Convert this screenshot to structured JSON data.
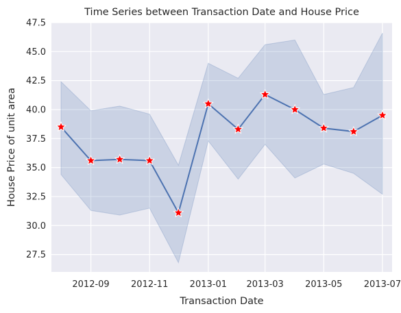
{
  "chart_data": {
    "type": "line",
    "title": "Time Series between Transaction Date and House Price",
    "xlabel": "Transaction Date",
    "ylabel": "House Price of unit area",
    "x": [
      "2012-08",
      "2012-09",
      "2012-10",
      "2012-11",
      "2012-12",
      "2013-01",
      "2013-02",
      "2013-03",
      "2013-04",
      "2013-05",
      "2013-06",
      "2013-07"
    ],
    "x_axis_type": "date",
    "xlim": [
      "2012-07-22",
      "2013-07-11"
    ],
    "ylim": [
      26.0,
      47.5
    ],
    "xticks": [
      "2012-09",
      "2012-11",
      "2013-01",
      "2013-03",
      "2013-05",
      "2013-07"
    ],
    "yticks": [
      27.5,
      30.0,
      32.5,
      35.0,
      37.5,
      40.0,
      42.5,
      45.0,
      47.5
    ],
    "series": [
      {
        "values": [
          38.5,
          35.6,
          35.7,
          35.6,
          31.1,
          40.5,
          38.3,
          41.3,
          40.0,
          38.4,
          38.1,
          39.5
        ],
        "ci_upper": [
          42.4,
          39.9,
          40.3,
          39.6,
          35.2,
          44.0,
          42.7,
          45.6,
          46.0,
          41.3,
          41.9,
          46.6
        ],
        "ci_lower": [
          34.4,
          31.3,
          30.9,
          31.5,
          26.8,
          37.3,
          34.0,
          37.0,
          34.1,
          35.3,
          34.5,
          32.7
        ],
        "line_color": "#4c72b0",
        "band_color": "#4c72b0",
        "marker": "star",
        "marker_color": "#ff0000"
      }
    ],
    "grid": true,
    "legend": "none",
    "background_color": "#eaeaf2"
  }
}
